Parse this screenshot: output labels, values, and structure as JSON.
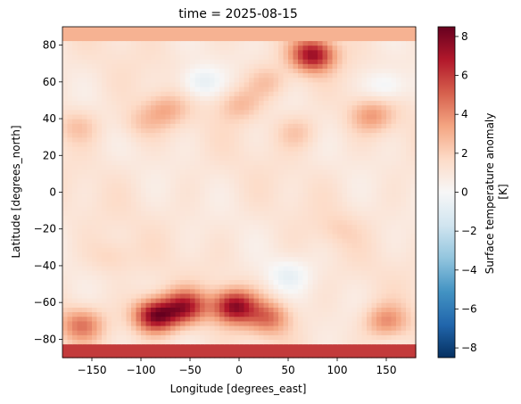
{
  "chart_data": {
    "type": "heatmap",
    "title": "time = 2025-08-15",
    "xlabel": "Longitude [degrees_east]",
    "ylabel": "Latitude [degrees_north]",
    "xlim": [
      -180,
      180
    ],
    "ylim": [
      -90,
      90
    ],
    "xticks": [
      -150,
      -100,
      -50,
      0,
      50,
      100,
      150
    ],
    "yticks": [
      -80,
      -60,
      -40,
      -20,
      0,
      20,
      40,
      60,
      80
    ],
    "colorbar": {
      "label": "Surface temperature anomaly\n[K]",
      "range": [
        -8.5,
        8.5
      ],
      "ticks": [
        -8,
        -6,
        -4,
        -2,
        0,
        2,
        4,
        6,
        8
      ],
      "colormap": "RdBu_r",
      "colors": [
        "#053061",
        "#2166ac",
        "#4393c3",
        "#92c5de",
        "#d1e5f0",
        "#f7f7f7",
        "#fddbc7",
        "#f4a582",
        "#d6604d",
        "#b2182b",
        "#67001f"
      ]
    },
    "grid": false,
    "field": {
      "background_anomaly": 1.1,
      "polar_north_band": {
        "lat_range": [
          83,
          90
        ],
        "value": 3.0
      },
      "polar_south_band": {
        "lat_range": [
          -90,
          -82
        ],
        "value": 6.0
      },
      "blobs": [
        {
          "lon": 75,
          "lat": 75,
          "value": 7.2
        },
        {
          "lon": -85,
          "lat": -67,
          "value": 8.2
        },
        {
          "lon": -55,
          "lat": -62,
          "value": 6.5
        },
        {
          "lon": -5,
          "lat": -62,
          "value": 7.5
        },
        {
          "lon": 30,
          "lat": -68,
          "value": 4.5
        },
        {
          "lon": 150,
          "lat": -70,
          "value": 4.0
        },
        {
          "lon": -160,
          "lat": -72,
          "value": 4.5
        },
        {
          "lon": 135,
          "lat": 42,
          "value": 3.5
        },
        {
          "lon": -75,
          "lat": 45,
          "value": 3.0
        },
        {
          "lon": 0,
          "lat": 48,
          "value": 2.8
        },
        {
          "lon": 30,
          "lat": 60,
          "value": 2.6
        },
        {
          "lon": -165,
          "lat": 36,
          "value": 2.5
        },
        {
          "lon": -40,
          "lat": 60,
          "value": -0.8
        },
        {
          "lon": 150,
          "lat": 58,
          "value": -0.6
        },
        {
          "lon": -100,
          "lat": 38,
          "value": 2.2
        },
        {
          "lon": 60,
          "lat": 33,
          "value": 2.4
        },
        {
          "lon": -130,
          "lat": -35,
          "value": 2.0
        },
        {
          "lon": 50,
          "lat": -45,
          "value": -0.4
        },
        {
          "lon": 100,
          "lat": -20,
          "value": 1.8
        }
      ]
    }
  }
}
